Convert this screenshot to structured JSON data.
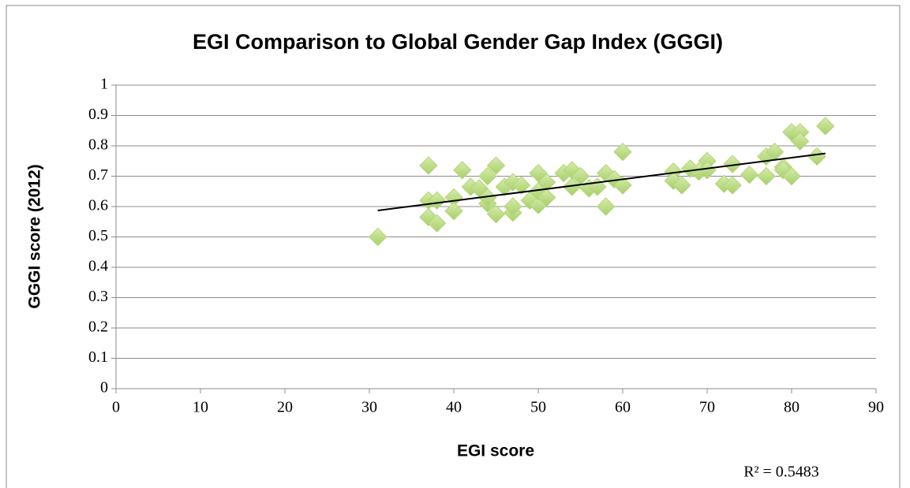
{
  "chart_data": {
    "type": "scatter",
    "title": "EGI Comparison to Global Gender Gap Index (GGGI)",
    "x_label": "EGI score",
    "y_label": "GGGI score (2012)",
    "annotation": "R² = 0.5483",
    "color": "#b3d67a",
    "x": [
      31,
      37,
      37,
      37,
      38,
      38,
      40,
      40,
      41,
      42,
      43,
      44,
      44,
      44,
      45,
      45,
      46,
      47,
      47,
      47,
      48,
      49,
      50,
      50,
      50,
      51,
      51,
      53,
      54,
      54,
      55,
      56,
      57,
      58,
      58,
      59,
      60,
      60,
      66,
      66,
      67,
      68,
      69,
      70,
      70,
      72,
      73,
      73,
      75,
      77,
      77,
      78,
      79,
      79,
      80,
      80,
      81,
      81,
      83,
      84
    ],
    "y": [
      0.5,
      0.735,
      0.62,
      0.565,
      0.545,
      0.62,
      0.63,
      0.585,
      0.72,
      0.665,
      0.66,
      0.7,
      0.61,
      0.63,
      0.735,
      0.575,
      0.665,
      0.68,
      0.58,
      0.6,
      0.67,
      0.62,
      0.71,
      0.605,
      0.65,
      0.68,
      0.63,
      0.71,
      0.72,
      0.665,
      0.7,
      0.66,
      0.665,
      0.71,
      0.6,
      0.69,
      0.78,
      0.67,
      0.715,
      0.685,
      0.67,
      0.725,
      0.715,
      0.75,
      0.72,
      0.675,
      0.74,
      0.67,
      0.705,
      0.765,
      0.7,
      0.78,
      0.73,
      0.72,
      0.845,
      0.7,
      0.845,
      0.815,
      0.765,
      0.865
    ],
    "trendline": {
      "x": [
        31,
        84
      ],
      "y": [
        0.587,
        0.775
      ]
    },
    "xlim": [
      0,
      90
    ],
    "xticks": [
      0,
      10,
      20,
      30,
      40,
      50,
      60,
      70,
      80,
      90
    ],
    "ylim": [
      0,
      1
    ],
    "yticks": [
      0,
      0.1,
      0.2,
      0.3,
      0.4,
      0.5,
      0.6,
      0.7,
      0.8,
      0.9,
      1
    ],
    "grid": true
  }
}
